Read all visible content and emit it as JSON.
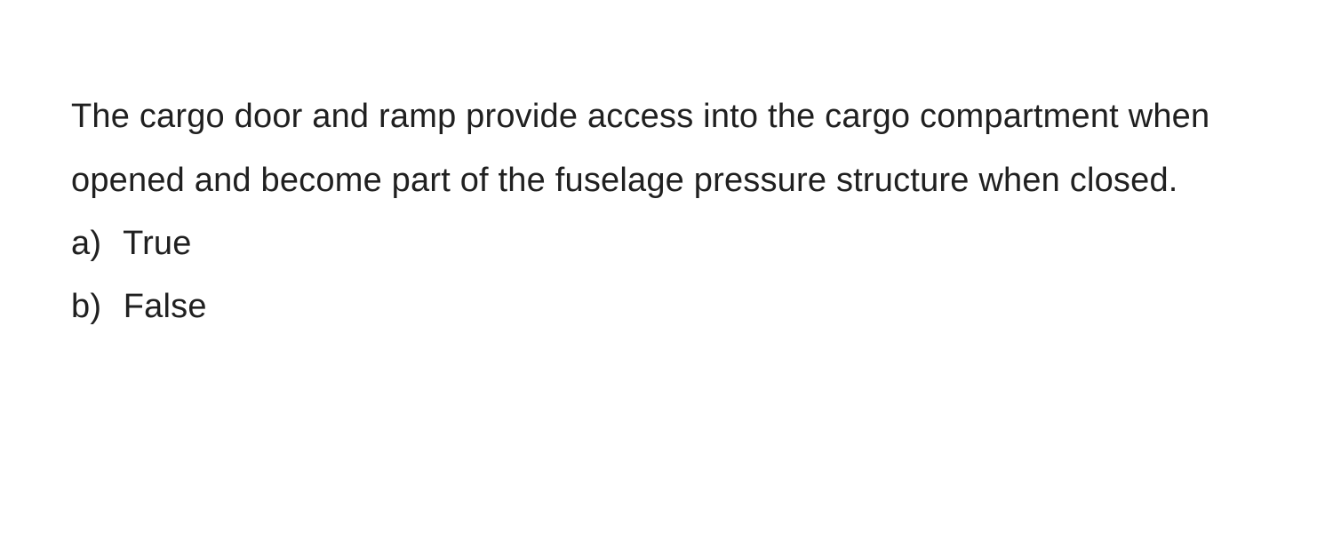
{
  "question": {
    "text": "The cargo door and ramp provide access into the cargo compartment when opened and become part of the fuselage pressure structure when closed.",
    "options": [
      {
        "label": "a)",
        "value": "True"
      },
      {
        "label": "b)",
        "value": "False"
      }
    ]
  },
  "styling": {
    "background_color": "#ffffff",
    "text_color": "#202020",
    "font_size": 38,
    "line_height": 1.9,
    "font_family": "-apple-system, BlinkMacSystemFont, 'Segoe UI', Helvetica, Arial, sans-serif"
  }
}
